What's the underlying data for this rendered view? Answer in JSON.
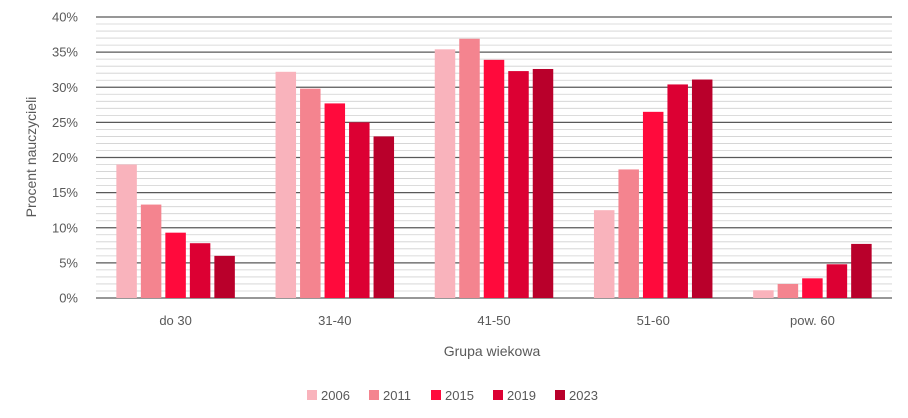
{
  "chart_data": {
    "type": "bar",
    "title": "",
    "xlabel": "Grupa wiekowa",
    "ylabel": "Procent nauczycieli",
    "categories": [
      "do 30",
      "31-40",
      "41-50",
      "51-60",
      "pow. 60"
    ],
    "ylim": [
      0,
      40
    ],
    "yticks": [
      0,
      5,
      10,
      15,
      20,
      25,
      30,
      35,
      40
    ],
    "ytick_labels": [
      "0%",
      "5%",
      "10%",
      "15%",
      "20%",
      "25%",
      "30%",
      "35%",
      "40%"
    ],
    "grid": true,
    "legend_position": "bottom",
    "series": [
      {
        "name": "2006",
        "color": "#f9b3bc",
        "values": [
          19.0,
          32.2,
          35.4,
          12.5,
          1.1
        ]
      },
      {
        "name": "2011",
        "color": "#f4848f",
        "values": [
          13.3,
          29.8,
          36.9,
          18.3,
          2.0
        ]
      },
      {
        "name": "2015",
        "color": "#ff0a3c",
        "values": [
          9.3,
          27.7,
          33.9,
          26.5,
          2.8
        ]
      },
      {
        "name": "2019",
        "color": "#dc0033",
        "values": [
          7.8,
          25.0,
          32.3,
          30.4,
          4.8
        ]
      },
      {
        "name": "2023",
        "color": "#b9002b",
        "values": [
          6.0,
          23.0,
          32.6,
          31.1,
          7.7
        ]
      }
    ]
  }
}
